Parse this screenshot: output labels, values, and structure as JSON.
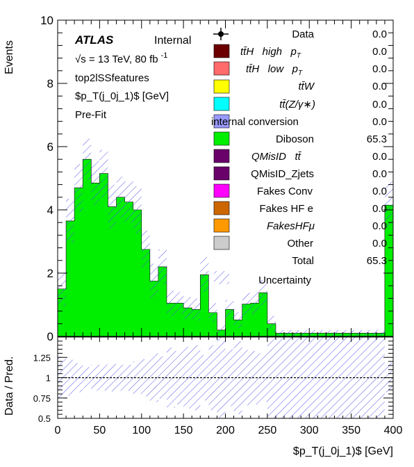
{
  "chart_data": {
    "type": "bar",
    "stacked": true,
    "x_bin_edges": [
      0,
      10,
      20,
      30,
      40,
      50,
      60,
      70,
      80,
      90,
      100,
      110,
      120,
      130,
      140,
      150,
      160,
      170,
      180,
      190,
      200,
      210,
      220,
      230,
      240,
      250,
      260,
      270,
      280,
      290,
      300,
      310,
      320,
      330,
      340,
      350,
      360,
      370,
      380,
      390,
      400
    ],
    "series": [
      {
        "name": "Diboson",
        "color": "#00ee00",
        "values": [
          1.5,
          3.65,
          4.7,
          5.6,
          4.85,
          5.15,
          4.1,
          4.4,
          4.25,
          4.0,
          2.75,
          1.75,
          2.2,
          1.05,
          1.05,
          0.9,
          0.85,
          1.95,
          0.75,
          0.2,
          0.85,
          0.52,
          1.02,
          1.05,
          1.38,
          0.4,
          0.1,
          0.1,
          0.1,
          0.1,
          0.1,
          0.1,
          0.1,
          0.1,
          0.1,
          0.1,
          0.1,
          0.1,
          0.1,
          4.15
        ]
      }
    ],
    "uncertainty": [
      0.55,
      0.7,
      0.75,
      0.65,
      0.7,
      0.75,
      0.7,
      0.65,
      0.65,
      0.75,
      0.6,
      0.55,
      0.55,
      0.4,
      0.35,
      0.35,
      0.35,
      0.55,
      0.3,
      0.15,
      0.3,
      0.25,
      0.35,
      0.35,
      0.4,
      0.25,
      0.1,
      0.1,
      0.1,
      0.1,
      0.1,
      0.1,
      0.1,
      0.1,
      0.1,
      0.1,
      0.1,
      0.1,
      0.1,
      0.75
    ],
    "ratio_band": [
      0.26,
      0.22,
      0.18,
      0.13,
      0.16,
      0.16,
      0.17,
      0.16,
      0.16,
      0.2,
      0.23,
      0.3,
      0.26,
      0.37,
      0.33,
      0.38,
      0.4,
      0.28,
      0.4,
      0.6,
      0.35,
      0.45,
      0.34,
      0.33,
      0.3,
      0.6,
      1.0,
      1.0,
      1.0,
      1.0,
      1.0,
      1.0,
      1.0,
      1.0,
      1.0,
      1.0,
      1.0,
      1.0,
      1.0,
      0.18
    ],
    "xlabel": "$p_T(j_0j_1)$ [GeV]",
    "ylabel": "Events",
    "ratio_ylabel": "Data / Pred.",
    "xlim": [
      0,
      400
    ],
    "ylim": [
      0,
      10
    ],
    "ratio_ylim": [
      0.5,
      1.5
    ],
    "x_ticks": [
      "0",
      "50",
      "100",
      "150",
      "200",
      "250",
      "300",
      "350",
      "400"
    ],
    "y_ticks": [
      "0",
      "2",
      "4",
      "6",
      "8",
      "10"
    ],
    "ratio_y_ticks": [
      "0.5",
      "0.75",
      "1",
      "1.25"
    ],
    "grid": false
  },
  "annotations": {
    "atlas": "ATLAS",
    "internal": "Internal",
    "energy": "√s = 13 TeV, 80 fb",
    "energy_sup": "-1",
    "region": "top2lSSfeatures",
    "variable": "$p_T(j_0j_1)$ [GeV]",
    "fit": "Pre-Fit"
  },
  "legend": {
    "placement": "top-right",
    "entries": [
      {
        "label": "Data",
        "value": "0.0",
        "type": "marker"
      },
      {
        "label": "ttH high pT",
        "value": "0.0",
        "color": "#6b0000"
      },
      {
        "label": "ttH low pT",
        "value": "0.0",
        "color": "#ff6a6a"
      },
      {
        "label": "ttW",
        "value": "0.0",
        "color": "#ffff00"
      },
      {
        "label": "tt(Z/γ*)",
        "value": "0.0",
        "color": "#00ffff"
      },
      {
        "label": "internal conversion",
        "value": "0.0",
        "color": "#9999ff"
      },
      {
        "label": "Diboson",
        "value": "65.3",
        "color": "#00ee00"
      },
      {
        "label": "QMisID tt",
        "value": "0.0",
        "color": "#6a006a"
      },
      {
        "label": "QMisID_Zjets",
        "value": "0.0",
        "color": "#6a006a"
      },
      {
        "label": "Fakes Conv",
        "value": "0.0",
        "color": "#ff00ff"
      },
      {
        "label": "Fakes HF e",
        "value": "0.0",
        "color": "#cc6600"
      },
      {
        "label": "FakesHFμ",
        "value": "0.0",
        "color": "#ff9900"
      },
      {
        "label": "Other",
        "value": "0.0",
        "color": "#cccccc"
      },
      {
        "label": "Total",
        "value": "65.3",
        "type": "none"
      },
      {
        "label": "Uncertainty",
        "value": "",
        "type": "hatch"
      }
    ]
  }
}
